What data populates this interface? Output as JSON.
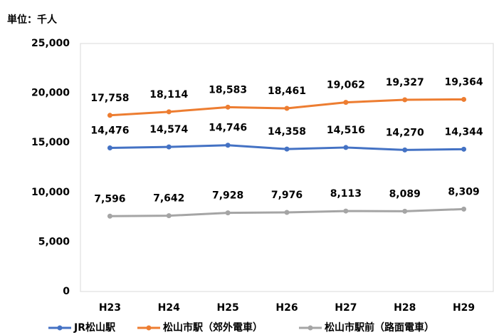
{
  "chart_data": {
    "type": "line",
    "unit": "単位：千人",
    "categories": [
      "H23",
      "H24",
      "H25",
      "H26",
      "H27",
      "H28",
      "H29"
    ],
    "series": [
      {
        "name": "JR松山駅",
        "color": "#4472c4",
        "values": [
          14476,
          14574,
          14746,
          14358,
          14516,
          14270,
          14344
        ],
        "value_labels": [
          "14,476",
          "14,574",
          "14,746",
          "14,358",
          "14,516",
          "14,270",
          "14,344"
        ]
      },
      {
        "name": "松山市駅（郊外電車）",
        "color": "#ed7d31",
        "values": [
          17758,
          18114,
          18583,
          18461,
          19062,
          19327,
          19364
        ],
        "value_labels": [
          "17,758",
          "18,114",
          "18,583",
          "18,461",
          "19,062",
          "19,327",
          "19,364"
        ]
      },
      {
        "name": "松山市駅前（路面電車）",
        "color": "#a5a5a5",
        "values": [
          7596,
          7642,
          7928,
          7976,
          8113,
          8089,
          8309
        ],
        "value_labels": [
          "7,596",
          "7,642",
          "7,928",
          "7,976",
          "8,113",
          "8,089",
          "8,309"
        ]
      }
    ],
    "ylim": [
      0,
      25000
    ],
    "yticks": [
      0,
      {
        "value": 5000,
        "label": "5,000"
      },
      {
        "value": 10000,
        "label": "10,000"
      },
      {
        "value": 15000,
        "label": "15,000"
      },
      {
        "value": 20000,
        "label": "20,000"
      },
      {
        "value": 25000,
        "label": "25,000"
      }
    ],
    "grid": false,
    "legend": "bottom"
  }
}
